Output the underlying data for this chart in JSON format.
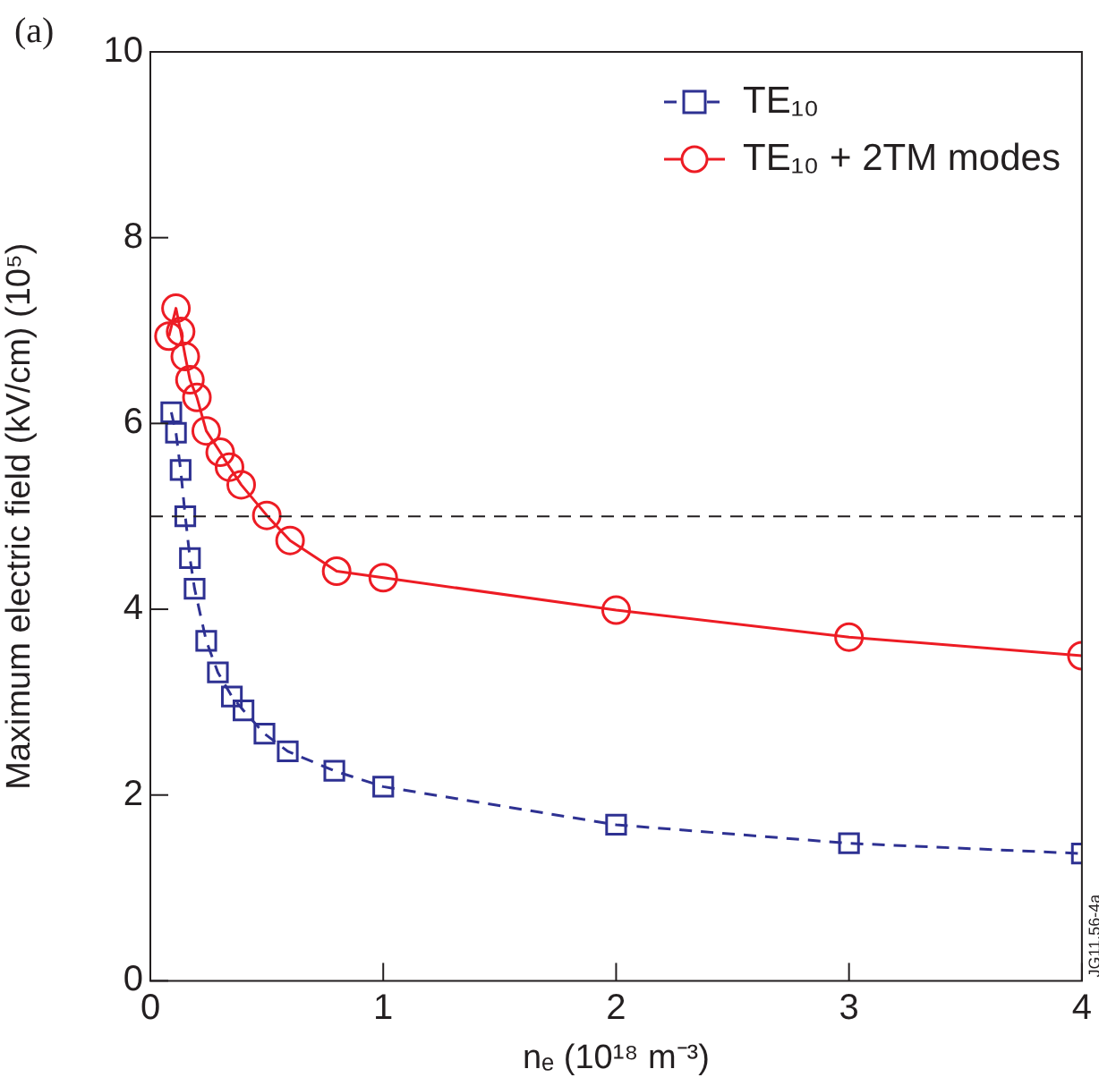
{
  "chart_data": {
    "type": "line",
    "xlabel": "nₑ (10¹⁸ m⁻³)",
    "ylabel": "Maximum electric field (kV/cm) (10⁵)",
    "annotations": [
      "(a)",
      "JG11.56-4a"
    ],
    "xlim": [
      0,
      4
    ],
    "xticks": [
      0,
      1,
      2,
      3,
      4
    ],
    "ylim": [
      0,
      10
    ],
    "yticks": [
      0,
      2,
      4,
      6,
      8,
      10
    ],
    "grid": false,
    "legend": "top right",
    "series": [
      {
        "name": "TE₁₀",
        "color": "#2e3192",
        "marker": "square",
        "line_style": "dashed",
        "x": [
          0.09,
          0.11,
          0.13,
          0.15,
          0.17,
          0.19,
          0.24,
          0.29,
          0.35,
          0.4,
          0.49,
          0.59,
          0.79,
          1,
          2,
          3,
          4
        ],
        "values": [
          6.12,
          5.9,
          5.5,
          5.0,
          4.55,
          4.22,
          3.66,
          3.32,
          3.06,
          2.91,
          2.66,
          2.47,
          2.26,
          2.09,
          1.68,
          1.48,
          1.37
        ]
      },
      {
        "name": "TE₁₀ + 2TM modes",
        "color": "#ed1c24",
        "marker": "circle",
        "line_style": "solid",
        "x": [
          0.08,
          0.11,
          0.13,
          0.15,
          0.17,
          0.2,
          0.24,
          0.3,
          0.34,
          0.39,
          0.5,
          0.6,
          0.8,
          1,
          2,
          3,
          4
        ],
        "values": [
          6.94,
          7.24,
          6.99,
          6.72,
          6.47,
          6.28,
          5.92,
          5.69,
          5.53,
          5.34,
          5.01,
          4.74,
          4.41,
          4.34,
          3.99,
          3.7,
          3.5
        ]
      }
    ],
    "ref_lines": [
      {
        "axis": "y",
        "value": 5,
        "color": "#231f20",
        "line_style": "dashed"
      }
    ]
  }
}
